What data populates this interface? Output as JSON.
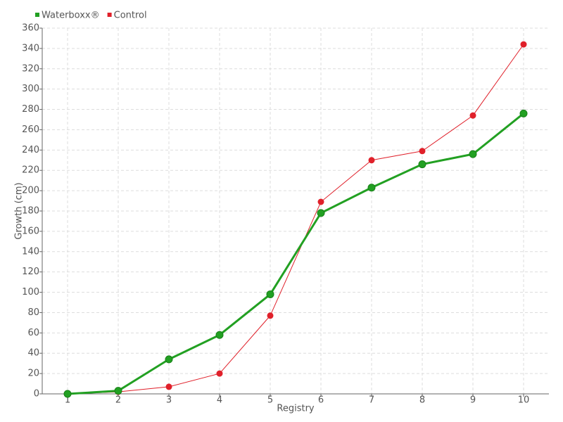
{
  "chart_data": {
    "type": "line",
    "x": [
      1,
      2,
      3,
      4,
      5,
      6,
      7,
      8,
      9,
      10
    ],
    "series": [
      {
        "name": "Waterboxx®",
        "color": "#22a022",
        "values": [
          0,
          3,
          34,
          58,
          98,
          178,
          203,
          226,
          236,
          276
        ]
      },
      {
        "name": "Control",
        "color": "#e0202a",
        "values": [
          0,
          2,
          7,
          20,
          77,
          189,
          230,
          239,
          274,
          344
        ]
      }
    ],
    "xlabel": "Registry",
    "ylabel": "Growth (cm)",
    "xlim": [
      0.5,
      10.5
    ],
    "xticks": [
      1,
      2,
      3,
      4,
      5,
      6,
      7,
      8,
      9,
      10
    ],
    "ylim": [
      0,
      360
    ],
    "yticks": [
      0,
      20,
      40,
      60,
      80,
      100,
      120,
      140,
      160,
      180,
      200,
      220,
      240,
      260,
      280,
      300,
      320,
      340,
      360
    ],
    "grid": true,
    "legend": "top-left"
  }
}
